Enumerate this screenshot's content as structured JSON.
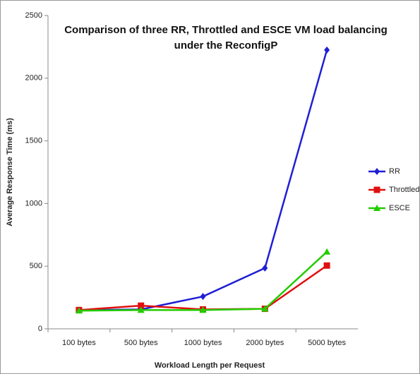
{
  "chart_data": {
    "type": "line",
    "title": "Comparison of three RR, Throttled and ESCE VM load balancing under the ReconfigP",
    "xlabel": "Workload Length per Request",
    "ylabel": "Average Response Time (ms)",
    "categories": [
      "100 bytes",
      "500 bytes",
      "1000 bytes",
      "2000 bytes",
      "5000 bytes"
    ],
    "series": [
      {
        "name": "RR",
        "color": "#1f1fd6",
        "marker": "diamond",
        "values": [
          150,
          155,
          258,
          485,
          2225
        ]
      },
      {
        "name": "Throttled",
        "color": "#e01010",
        "marker": "square",
        "values": [
          150,
          185,
          155,
          160,
          505
        ]
      },
      {
        "name": "ESCE",
        "color": "#22cc00",
        "marker": "triangle",
        "values": [
          145,
          150,
          150,
          160,
          615
        ]
      }
    ],
    "ylim": [
      0,
      2500
    ],
    "yticks": [
      0,
      500,
      1000,
      1500,
      2000,
      2500
    ],
    "legend": "right",
    "grid": false
  }
}
